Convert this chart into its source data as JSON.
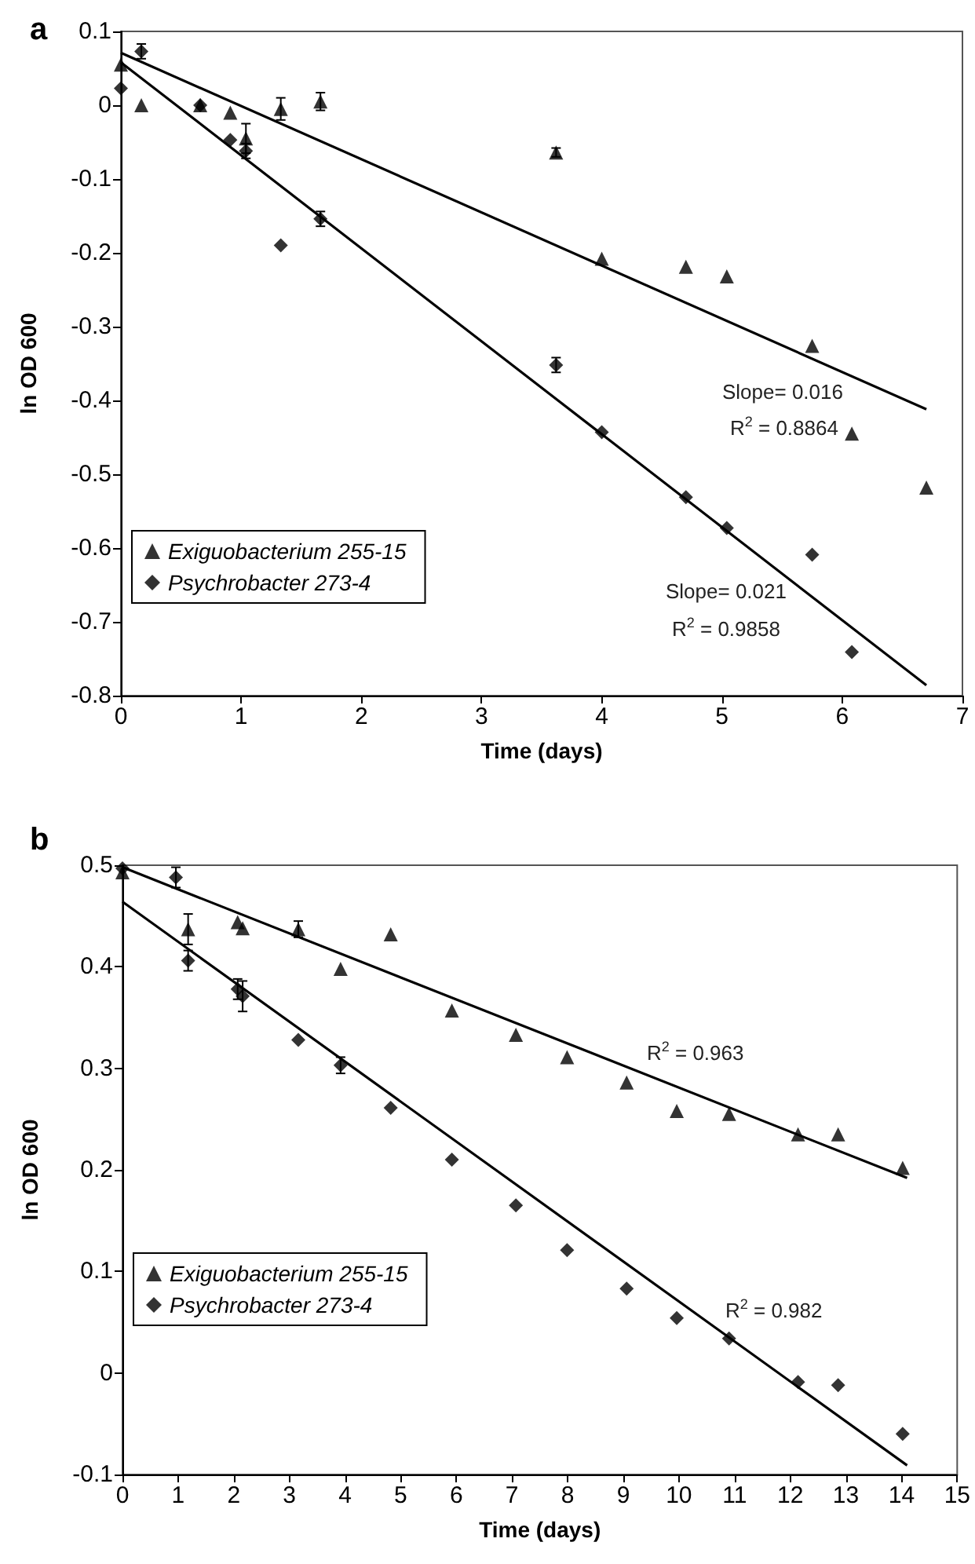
{
  "chart_data": [
    {
      "type": "scatter",
      "title": "a",
      "xlabel": "Time (days)",
      "ylabel": "ln OD 600",
      "xlim": [
        0,
        7
      ],
      "xticks": [
        0,
        1,
        2,
        3,
        4,
        5,
        6,
        7
      ],
      "ylim": [
        -0.8,
        0.1
      ],
      "yticks": [
        -0.8,
        -0.7,
        -0.6,
        -0.5,
        -0.4,
        -0.3,
        -0.2,
        -0.1,
        0,
        0.1
      ],
      "grid": false,
      "legend": "left",
      "annotations": [
        "Slope= 0.016",
        "R$^{2}$ = 0.8864",
        "Slope= 0.021",
        "R$^{2}$ = 0.9858"
      ],
      "series": [
        {
          "name": "Exiguobacterium 255-15",
          "color": "#000000",
          "marker": "triangle",
          "x": [
            0,
            0.17,
            0.66,
            0.91,
            1.04,
            1.33,
            1.66,
            3.62,
            4.0,
            4.7,
            5.04,
            5.75,
            6.08,
            6.7
          ],
          "values": [
            0.055,
            0,
            0,
            -0.01,
            -0.045,
            -0.005,
            0.005,
            -0.064,
            -0.208,
            -0.219,
            -0.232,
            -0.326,
            -0.445,
            -0.518
          ],
          "errors": [
            null,
            null,
            null,
            null,
            0.02,
            0.015,
            0.012,
            0.006,
            null,
            null,
            null,
            null,
            null,
            null
          ]
        },
        {
          "name": "Psychrobacter 273-4",
          "color": "#000000",
          "marker": "diamond",
          "x": [
            0,
            0.17,
            0.66,
            0.91,
            1.04,
            1.33,
            1.66,
            3.62,
            4.0,
            4.7,
            5.04,
            5.75,
            6.08
          ],
          "values": [
            0.023,
            0.073,
            0,
            -0.047,
            -0.062,
            -0.19,
            -0.154,
            -0.352,
            -0.443,
            -0.531,
            -0.573,
            -0.609,
            -0.741
          ],
          "errors": [
            null,
            0.01,
            null,
            null,
            0.01,
            null,
            0.01,
            0.01,
            null,
            null,
            null,
            null,
            null
          ]
        },
        {
          "type": "line",
          "color": "#000000",
          "marker": "none",
          "x": [
            0,
            6.7
          ],
          "values": [
            0.071,
            -0.412
          ]
        },
        {
          "type": "line",
          "color": "#000000",
          "marker": "none",
          "x": [
            0,
            6.7
          ],
          "values": [
            0.058,
            -0.786
          ]
        }
      ]
    },
    {
      "type": "scatter",
      "title": "b",
      "xlabel": "Time (days)",
      "ylabel": "ln OD 600",
      "xlim": [
        0,
        15
      ],
      "xticks": [
        0,
        1,
        2,
        3,
        4,
        5,
        6,
        7,
        8,
        9,
        10,
        11,
        12,
        13,
        14,
        15
      ],
      "ylim": [
        -0.1,
        0.5
      ],
      "yticks": [
        -0.1,
        0,
        0.1,
        0.2,
        0.3,
        0.4,
        0.5
      ],
      "grid": false,
      "legend": "left",
      "annotations": [
        "R$^{2}$ = 0.963",
        "R$^{2}$ = 0.982"
      ],
      "series": [
        {
          "name": "Exiguobacterium 255-15",
          "color": "#000000",
          "marker": "triangle",
          "x": [
            0,
            1.18,
            2.07,
            2.16,
            3.16,
            3.92,
            4.82,
            5.92,
            7.07,
            7.99,
            9.06,
            9.96,
            10.9,
            12.14,
            12.86,
            14.02
          ],
          "values": [
            0.493,
            0.437,
            0.444,
            0.438,
            0.437,
            0.398,
            0.432,
            0.357,
            0.333,
            0.311,
            0.286,
            0.258,
            0.255,
            0.235,
            0.235,
            0.202
          ],
          "errors": [
            null,
            0.015,
            null,
            null,
            0.008,
            null,
            null,
            null,
            null,
            null,
            null,
            null,
            null,
            null,
            null,
            null
          ]
        },
        {
          "name": "Psychrobacter 273-4",
          "color": "#000000",
          "marker": "diamond",
          "x": [
            0,
            0.96,
            1.18,
            2.07,
            2.16,
            3.16,
            3.92,
            4.82,
            5.92,
            7.07,
            7.99,
            9.06,
            9.96,
            10.9,
            12.14,
            12.86,
            14.02
          ],
          "values": [
            0.497,
            0.488,
            0.406,
            0.378,
            0.371,
            0.328,
            0.303,
            0.261,
            0.21,
            0.165,
            0.121,
            0.083,
            0.054,
            0.034,
            -0.009,
            -0.012,
            -0.06
          ],
          "errors": [
            null,
            0.01,
            0.01,
            0.01,
            0.015,
            null,
            0.008,
            null,
            null,
            null,
            null,
            null,
            null,
            null,
            null,
            null,
            null
          ]
        },
        {
          "type": "line",
          "color": "#000000",
          "marker": "none",
          "x": [
            0,
            14.1
          ],
          "values": [
            0.498,
            0.192
          ]
        },
        {
          "type": "line",
          "color": "#000000",
          "marker": "none",
          "x": [
            0,
            14.1
          ],
          "values": [
            0.464,
            -0.091
          ]
        }
      ]
    }
  ]
}
